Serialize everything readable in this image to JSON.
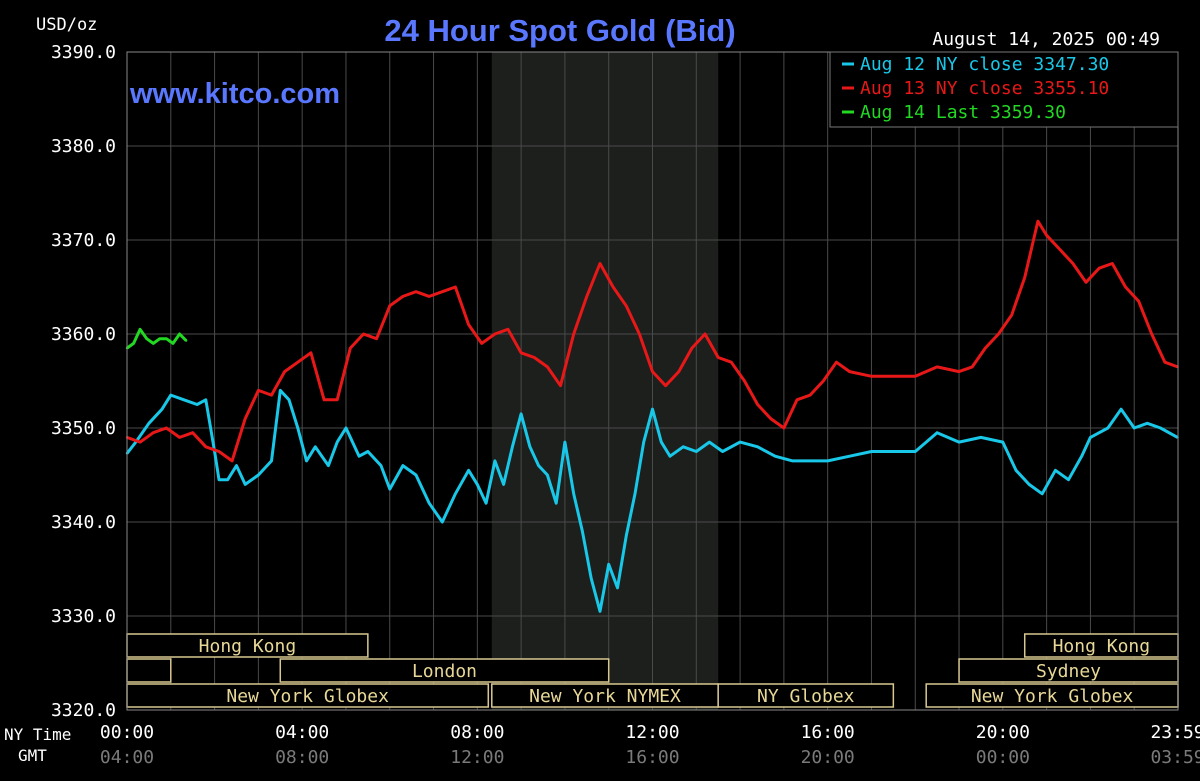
{
  "chart_data": {
    "type": "line",
    "title": "24 Hour Spot Gold (Bid)",
    "units_label": "USD/oz",
    "site": "www.kitco.com",
    "timestamp": "August 14, 2025 00:49",
    "ylim": [
      3320,
      3390
    ],
    "yticks": [
      "3390.0",
      "3380.0",
      "3370.0",
      "3360.0",
      "3350.0",
      "3340.0",
      "3330.0",
      "3320.0"
    ],
    "xlim": [
      0,
      24
    ],
    "x_axis_labels": {
      "ny_label": "NY Time",
      "gmt_label": "GMT",
      "ny_ticks": [
        "00:00",
        "04:00",
        "08:00",
        "12:00",
        "16:00",
        "20:00",
        "23:59"
      ],
      "gmt_ticks": [
        "04:00",
        "08:00",
        "12:00",
        "16:00",
        "20:00",
        "00:00",
        "03:59"
      ]
    },
    "grid": true,
    "legend_position": "top-right",
    "legend": [
      {
        "label": "Aug 12 NY close 3347.30",
        "color": "#19c8e8"
      },
      {
        "label": "Aug 13 NY close 3355.10",
        "color": "#e81818"
      },
      {
        "label": "Aug 14 Last 3359.30",
        "color": "#22d822"
      }
    ],
    "shaded_region": {
      "start_hour": 8.33,
      "end_hour": 13.5
    },
    "sessions": [
      {
        "label": "Hong Kong",
        "start_hour": 0,
        "end_hour": 5.5,
        "row": 0
      },
      {
        "label": "Hong Kong",
        "start_hour": 20.5,
        "end_hour": 24,
        "row": 0
      },
      {
        "label": "",
        "start_hour": 0,
        "end_hour": 1,
        "row": 1
      },
      {
        "label": "London",
        "start_hour": 3.5,
        "end_hour": 11,
        "row": 1
      },
      {
        "label": "Sydney",
        "start_hour": 19,
        "end_hour": 24,
        "row": 1
      },
      {
        "label": "New York Globex",
        "start_hour": 0,
        "end_hour": 8.25,
        "row": 2
      },
      {
        "label": "New York NYMEX",
        "start_hour": 8.33,
        "end_hour": 13.5,
        "row": 2
      },
      {
        "label": "NY Globex",
        "start_hour": 13.5,
        "end_hour": 17.5,
        "row": 2
      },
      {
        "label": "New York Globex",
        "start_hour": 18.25,
        "end_hour": 24,
        "row": 2
      }
    ],
    "series": [
      {
        "name": "Aug 12",
        "color": "#19c8e8",
        "x": [
          0,
          0.2,
          0.5,
          0.8,
          1.0,
          1.3,
          1.6,
          1.8,
          2.0,
          2.1,
          2.3,
          2.5,
          2.7,
          3.0,
          3.3,
          3.5,
          3.7,
          3.9,
          4.1,
          4.3,
          4.6,
          4.8,
          5.0,
          5.3,
          5.5,
          5.8,
          6.0,
          6.3,
          6.6,
          6.9,
          7.2,
          7.5,
          7.8,
          8.0,
          8.2,
          8.4,
          8.6,
          8.8,
          9.0,
          9.2,
          9.4,
          9.6,
          9.8,
          10.0,
          10.2,
          10.4,
          10.6,
          10.8,
          11.0,
          11.2,
          11.4,
          11.6,
          11.8,
          12.0,
          12.2,
          12.4,
          12.7,
          13.0,
          13.3,
          13.6,
          14.0,
          14.4,
          14.8,
          15.2,
          15.6,
          16.0,
          16.5,
          17.0,
          17.5,
          18.0,
          18.5,
          19.0,
          19.5,
          20.0,
          20.3,
          20.6,
          20.9,
          21.2,
          21.5,
          21.8,
          22.0,
          22.2,
          22.4,
          22.7,
          23.0,
          23.3,
          23.6,
          23.99
        ],
        "y": [
          3347.3,
          3348.5,
          3350.5,
          3352.0,
          3353.5,
          3353.0,
          3352.5,
          3353.0,
          3347.5,
          3344.5,
          3344.5,
          3346.0,
          3344.0,
          3345.0,
          3346.5,
          3354.0,
          3353.0,
          3350.0,
          3346.5,
          3348.0,
          3346.0,
          3348.5,
          3350.0,
          3347.0,
          3347.5,
          3346.0,
          3343.5,
          3346.0,
          3345.0,
          3342.0,
          3340.0,
          3343.0,
          3345.5,
          3344.0,
          3342.0,
          3346.5,
          3344.0,
          3348.0,
          3351.5,
          3348.0,
          3346.0,
          3345.0,
          3342.0,
          3348.5,
          3343.0,
          3339.0,
          3334.0,
          3330.5,
          3335.5,
          3333.0,
          3338.5,
          3343.0,
          3348.5,
          3352.0,
          3348.5,
          3347.0,
          3348.0,
          3347.5,
          3348.5,
          3347.5,
          3348.5,
          3348.0,
          3347.0,
          3346.5,
          3346.5,
          3346.5,
          3347.0,
          3347.5,
          3347.5,
          3347.5,
          3349.5,
          3348.5,
          3349.0,
          3348.5,
          3345.5,
          3344.0,
          3343.0,
          3345.5,
          3344.5,
          3347.0,
          3349.0,
          3349.5,
          3350.0,
          3352.0,
          3350.0,
          3350.5,
          3350.0,
          3349.0
        ]
      },
      {
        "name": "Aug 13",
        "color": "#e81818",
        "x": [
          0,
          0.3,
          0.6,
          0.9,
          1.2,
          1.5,
          1.8,
          2.1,
          2.4,
          2.7,
          3.0,
          3.3,
          3.6,
          3.9,
          4.2,
          4.5,
          4.8,
          5.1,
          5.4,
          5.7,
          6.0,
          6.3,
          6.6,
          6.9,
          7.2,
          7.5,
          7.8,
          8.1,
          8.4,
          8.7,
          9.0,
          9.3,
          9.6,
          9.9,
          10.2,
          10.5,
          10.8,
          11.1,
          11.4,
          11.7,
          12.0,
          12.3,
          12.6,
          12.9,
          13.2,
          13.5,
          13.8,
          14.1,
          14.4,
          14.7,
          15.0,
          15.3,
          15.6,
          15.9,
          16.2,
          16.5,
          17.0,
          17.5,
          18.0,
          18.5,
          19.0,
          19.3,
          19.6,
          19.9,
          20.2,
          20.5,
          20.8,
          21.0,
          21.3,
          21.6,
          21.9,
          22.2,
          22.5,
          22.8,
          23.1,
          23.4,
          23.7,
          23.99
        ],
        "y": [
          3349.0,
          3348.5,
          3349.5,
          3350.0,
          3349.0,
          3349.5,
          3348.0,
          3347.5,
          3346.5,
          3351.0,
          3354.0,
          3353.5,
          3356.0,
          3357.0,
          3358.0,
          3353.0,
          3353.0,
          3358.5,
          3360.0,
          3359.5,
          3363.0,
          3364.0,
          3364.5,
          3364.0,
          3364.5,
          3365.0,
          3361.0,
          3359.0,
          3360.0,
          3360.5,
          3358.0,
          3357.5,
          3356.5,
          3354.5,
          3360.0,
          3364.0,
          3367.5,
          3365.0,
          3363.0,
          3360.0,
          3356.0,
          3354.5,
          3356.0,
          3358.5,
          3360.0,
          3357.5,
          3357.0,
          3355.0,
          3352.5,
          3351.0,
          3350.0,
          3353.0,
          3353.5,
          3355.0,
          3357.0,
          3356.0,
          3355.5,
          3355.5,
          3355.5,
          3356.5,
          3356.0,
          3356.5,
          3358.5,
          3360.0,
          3362.0,
          3366.0,
          3372.0,
          3370.5,
          3369.0,
          3367.5,
          3365.5,
          3367.0,
          3367.5,
          3365.0,
          3363.5,
          3360.0,
          3357.0,
          3356.5
        ]
      },
      {
        "name": "Aug 14",
        "color": "#22d822",
        "x": [
          0,
          0.15,
          0.3,
          0.45,
          0.6,
          0.75,
          0.9,
          1.05,
          1.2,
          1.35
        ],
        "y": [
          3358.5,
          3359.0,
          3360.5,
          3359.5,
          3359.0,
          3359.5,
          3359.5,
          3359.0,
          3360.0,
          3359.3
        ]
      }
    ]
  }
}
